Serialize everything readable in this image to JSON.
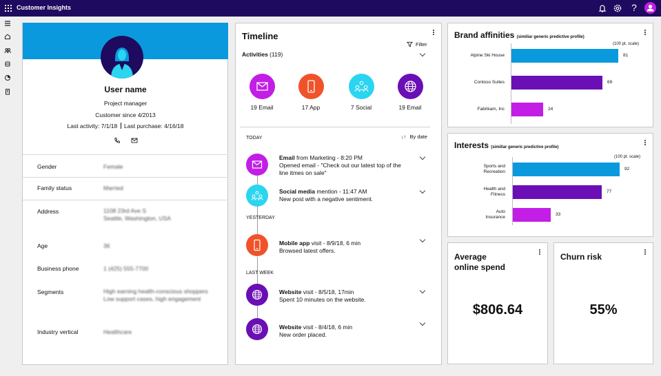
{
  "header": {
    "app_title": "Customer Insights",
    "icons": [
      "waffle-icon",
      "bell-icon",
      "gear-icon",
      "help-icon",
      "user-avatar-icon"
    ],
    "help_glyph": "?"
  },
  "leftnav": {
    "icons": [
      "hamburger-icon",
      "home-icon",
      "people-icon",
      "database-icon",
      "segments-icon",
      "building-icon"
    ]
  },
  "profile": {
    "name": "User name",
    "title": "Project manager",
    "customer_since": "Customer since 4/2013",
    "last_activity": "Last activity: 7/1/18",
    "last_purchase": "Last purchase: 4/16/18",
    "fields": [
      {
        "label": "Gender",
        "value": "Female"
      },
      {
        "label": "Family status",
        "value": "Married"
      },
      {
        "label": "Address",
        "value": "1108 23rd Ave S",
        "value2": "Seattle, Washington, USA"
      },
      {
        "label": "Age",
        "value": "36"
      },
      {
        "label": "Business phone",
        "value": "1 (425) 555-7700"
      },
      {
        "label": "Segments",
        "value": "High earning health-conscious shoppers",
        "value2": "Low support cases, high engagement"
      },
      {
        "label": "Industry vertical",
        "value": "Healthcare"
      }
    ]
  },
  "timeline": {
    "title": "Timeline",
    "filter_label": "Filter",
    "activities_label": "Activities",
    "activities_count": "(119)",
    "sort_label": "By date",
    "categories": [
      {
        "label": "19 Email",
        "icon": "email-icon",
        "color": "#c21ee6"
      },
      {
        "label": "17 App",
        "icon": "mobile-app-icon",
        "color": "#f0522a"
      },
      {
        "label": "7 Social",
        "icon": "social-icon",
        "color": "#2bd5f0"
      },
      {
        "label": "19 Email",
        "icon": "globe-icon",
        "color": "#6a0fb5"
      }
    ],
    "sections": [
      "TODAY",
      "YESTERDAY",
      "LAST WEEK"
    ],
    "events": [
      {
        "bold": "Email",
        "rest": " from Marketing - 8:20 PM",
        "desc": "Opened email - \"Check out our latest top of the line itmes on sale\"",
        "icon": "email-icon",
        "color": "#c21ee6"
      },
      {
        "bold": "Social media",
        "rest": " mention - 11:47 AM",
        "desc": "New post with a negative sentiment.",
        "icon": "social-icon",
        "color": "#2bd5f0"
      },
      {
        "bold": "Mobile app",
        "rest": " visit - 8/9/18, 6 min",
        "desc": "Browsed latest offers.",
        "icon": "mobile-app-icon",
        "color": "#f0522a"
      },
      {
        "bold": "Website",
        "rest": " visit - 8/5/18, 17min",
        "desc": "Spent 10 minutes on the website.",
        "icon": "globe-icon",
        "color": "#6a0fb5"
      },
      {
        "bold": "Website",
        "rest": " visit - 8/4/18, 6 min",
        "desc": "New order placed.",
        "icon": "globe-icon",
        "color": "#6a0fb5"
      }
    ]
  },
  "brand": {
    "title": "Brand affinities",
    "subtitle": "(similiar generic predictive profile)",
    "scale": "(100 pt. scale)"
  },
  "interests": {
    "title": "Interests",
    "subtitle": "(similiar generic predictive profile)",
    "scale": "(100 pt. scale)"
  },
  "spend": {
    "title_line1": "Average",
    "title_line2": "online spend",
    "value": "$806.64"
  },
  "churn": {
    "title": "Churn risk",
    "value": "55%"
  },
  "chart_data": [
    {
      "type": "bar",
      "title": "Brand affinities",
      "categories": [
        "Alpine Ski House",
        "Contoso Suites",
        "Fabrikam, Inc"
      ],
      "values": [
        81,
        69,
        24
      ],
      "colors": [
        "#0a99dc",
        "#6a0fb5",
        "#c21ee6"
      ],
      "xlim": [
        0,
        100
      ],
      "orientation": "horizontal",
      "grid": false
    },
    {
      "type": "bar",
      "title": "Interests",
      "categories": [
        "Sports and Recreation",
        "Health and Fitness",
        "Auto Insurance"
      ],
      "category_lines": [
        [
          "Sports and",
          "Recreation"
        ],
        [
          "Health and",
          "Fitness"
        ],
        [
          "Auto",
          "Insurance"
        ]
      ],
      "values": [
        92,
        77,
        33
      ],
      "colors": [
        "#0a99dc",
        "#6a0fb5",
        "#c21ee6"
      ],
      "xlim": [
        0,
        100
      ],
      "orientation": "horizontal",
      "grid": false
    }
  ]
}
